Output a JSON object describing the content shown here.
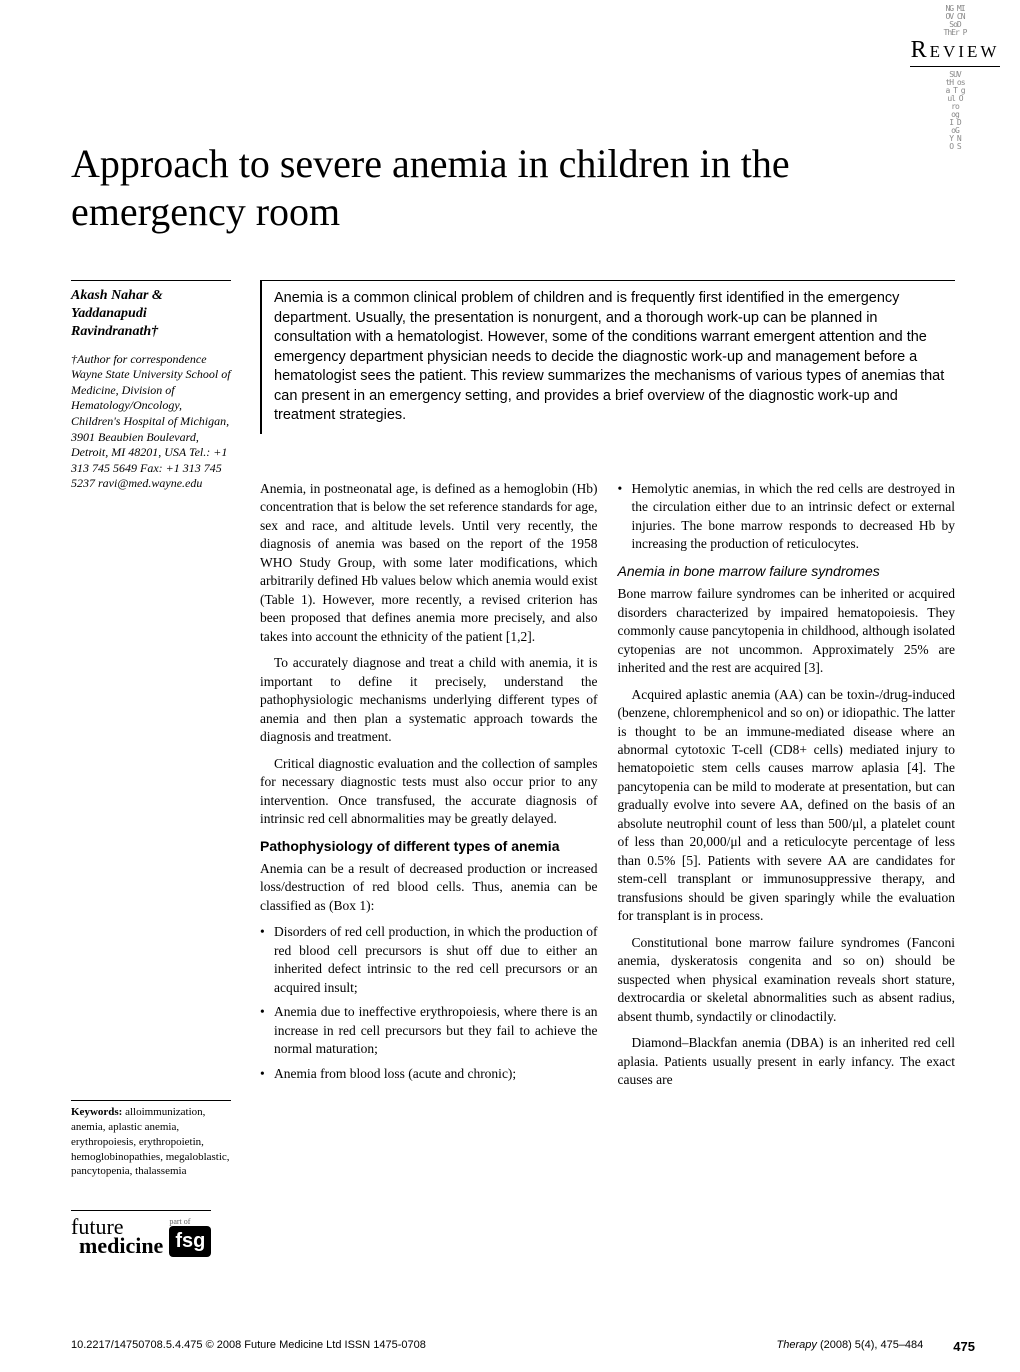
{
  "header": {
    "category": "Review"
  },
  "title": "Approach to severe anemia in children in the emergency room",
  "authors": "Akash Nahar & Yaddanapudi Ravindranath†",
  "affiliation": "†Author for correspondence Wayne State University School of Medicine, Division of Hematology/Oncology, Children's Hospital of Michigan, 3901 Beaubien Boulevard, Detroit, MI 48201, USA Tel.: +1 313 745 5649 Fax: +1 313 745 5237 ravi@med.wayne.edu",
  "keywords": {
    "label": "Keywords:",
    "text": "alloimmunization, anemia, aplastic anemia, erythropoiesis, erythropoietin, hemoglobinopathies, megaloblastic, pancytopenia, thalassemia"
  },
  "logo": {
    "line1": "future",
    "line2": "medicine",
    "part_of": "part of",
    "badge": "fsg"
  },
  "abstract": "Anemia is a common clinical problem of children and is frequently first identified in the emergency department. Usually, the presentation is nonurgent, and a thorough work-up can be planned in consultation with a hematologist. However, some of the conditions warrant emergent attention and the emergency department physician needs to decide the diagnostic work-up and management before a hematologist sees the patient. This review summarizes the mechanisms of various types of anemias that can present in an emergency setting, and provides a brief overview of the diagnostic work-up and treatment strategies.",
  "col1": {
    "p1": "Anemia, in postneonatal age, is defined as a hemoglobin (Hb) concentration that is below the set reference standards for age, sex and race, and altitude levels. Until very recently, the diagnosis of anemia was based on the report of the 1958 WHO Study Group, with some later modifications, which arbitrarily defined Hb values below which anemia would exist (Table 1). However, more recently, a revised criterion has been proposed that defines anemia more precisely, and also takes into account the ethnicity of the patient [1,2].",
    "p2": "To accurately diagnose and treat a child with anemia, it is important to define it precisely, understand the pathophysiologic mechanisms underlying different types of anemia and then plan a systematic approach towards the diagnosis and treatment.",
    "p3": "Critical diagnostic evaluation and the collection of samples for necessary diagnostic tests must also occur prior to any intervention. Once transfused, the accurate diagnosis of intrinsic red cell abnormalities may be greatly delayed.",
    "section1_head": "Pathophysiology of different types of anemia",
    "p4": "Anemia can be a result of decreased production or increased loss/destruction of red blood cells. Thus, anemia can be classified as (Box 1):",
    "bullets": [
      "Disorders of red cell production, in which the production of red blood cell precursors is shut off due to either an inherited defect intrinsic to the red cell precursors or an acquired insult;",
      "Anemia due to ineffective erythropoiesis, where there is an increase in red cell precursors but they fail to achieve the normal maturation;",
      "Anemia from blood loss (acute and chronic);"
    ]
  },
  "col2": {
    "bullet_top": "Hemolytic anemias, in which the red cells are destroyed in the circulation either due to an intrinsic defect or external injuries. The bone marrow responds to decreased Hb by increasing the production of reticulocytes.",
    "subsection1_head": "Anemia in bone marrow failure syndromes",
    "p1": "Bone marrow failure syndromes can be inherited or acquired disorders characterized by impaired hematopoiesis. They commonly cause pancytopenia in childhood, although isolated cytopenias are not uncommon. Approximately 25% are inherited and the rest are acquired [3].",
    "p2": "Acquired aplastic anemia (AA) can be toxin-/drug-induced (benzene, chloremphenicol and so on) or idiopathic. The latter is thought to be an immune-mediated disease where an abnormal cytotoxic T-cell (CD8+ cells) mediated injury to hematopoietic stem cells causes marrow aplasia [4]. The pancytopenia can be mild to moderate at presentation, but can gradually evolve into severe AA, defined on the basis of an absolute neutrophil count of less than 500/μl, a platelet count of less than 20,000/μl and a reticulocyte percentage of less than 0.5% [5]. Patients with severe AA are candidates for stem-cell transplant or immunosuppressive therapy, and transfusions should be given sparingly while the evaluation for transplant is in process.",
    "p3": "Constitutional bone marrow failure syndromes (Fanconi anemia, dyskeratosis congenita and so on) should be suspected when physical examination reveals short stature, dextrocardia or skeletal abnormalities such as absent radius, absent thumb, syndactily or clinodactily.",
    "p4": "Diamond–Blackfan anemia (DBA) is an inherited red cell aplasia. Patients usually present in early infancy. The exact causes are"
  },
  "footer": {
    "left": "10.2217/14750708.5.4.475 © 2008 Future Medicine Ltd  ISSN 1475-0708",
    "journal": "Therapy",
    "issue": "(2008) 5(4), 475–484",
    "page": "475"
  },
  "colors": {
    "text": "#000000",
    "bg": "#ffffff",
    "deco": "#999999"
  }
}
